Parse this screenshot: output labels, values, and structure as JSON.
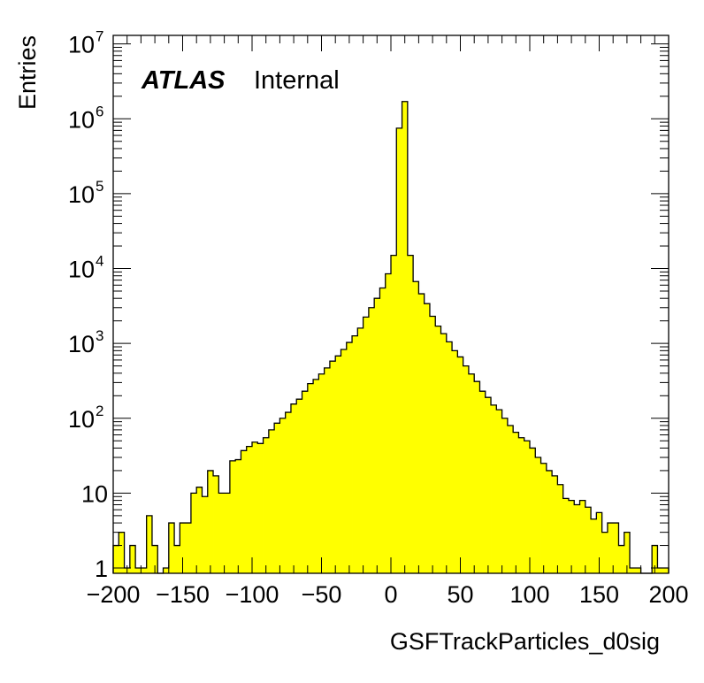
{
  "chart_data": {
    "type": "bar",
    "plot_style": "histogram",
    "label_bold": "ATLAS",
    "label_plain": "Internal",
    "xlabel": "GSFTrackParticles_d0sig",
    "ylabel": "Entries",
    "xlim": [
      -200,
      200
    ],
    "ylim": [
      0.85,
      13000000
    ],
    "log_y": true,
    "grid": false,
    "fill_color": "#ffff00",
    "line_color": "#000000",
    "x_ticks": [
      -200,
      -150,
      -100,
      -50,
      0,
      50,
      100,
      150,
      200
    ],
    "x_tick_labels": [
      "−200",
      "−150",
      "−100",
      "−50",
      "0",
      "50",
      "100",
      "150",
      "200"
    ],
    "y_major_ticks": [
      1,
      10,
      100,
      1000,
      10000,
      100000,
      1000000,
      10000000
    ],
    "y_tick_labels": [
      {
        "base": "1",
        "exp": ""
      },
      {
        "base": "10",
        "exp": ""
      },
      {
        "base": "10",
        "exp": "2"
      },
      {
        "base": "10",
        "exp": "3"
      },
      {
        "base": "10",
        "exp": "4"
      },
      {
        "base": "10",
        "exp": "5"
      },
      {
        "base": "10",
        "exp": "6"
      },
      {
        "base": "10",
        "exp": "7"
      }
    ],
    "bin_edges": {
      "start": -200,
      "width": 4
    },
    "values": [
      2,
      3,
      1,
      2,
      1,
      1,
      5,
      2,
      0,
      1,
      4,
      2,
      4,
      4,
      10,
      12,
      9,
      20,
      17,
      10,
      10,
      27,
      28,
      37,
      42,
      48,
      46,
      55,
      70,
      86,
      100,
      120,
      155,
      180,
      230,
      290,
      330,
      390,
      470,
      580,
      680,
      830,
      1030,
      1260,
      1600,
      2250,
      3000,
      4000,
      5500,
      8500,
      15000,
      750000,
      1700000,
      15000,
      6700,
      4600,
      3400,
      2300,
      1700,
      1350,
      1050,
      800,
      660,
      500,
      390,
      310,
      230,
      190,
      150,
      130,
      100,
      80,
      65,
      55,
      50,
      40,
      30,
      25,
      20,
      17,
      13,
      8.5,
      8,
      7,
      8,
      6.5,
      4.5,
      5.5,
      3,
      4,
      4,
      2,
      3,
      1,
      1,
      0,
      0,
      2,
      1,
      1
    ]
  }
}
